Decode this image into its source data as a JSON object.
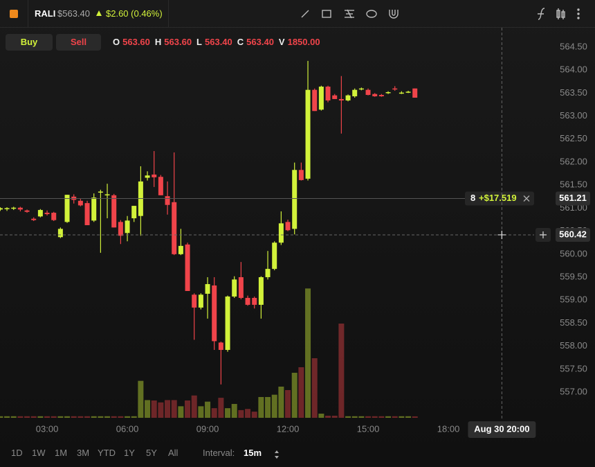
{
  "header": {
    "symbol": "RALI",
    "price": "$563.40",
    "change": "$2.60 (0.46%)"
  },
  "trade_buttons": [
    "Buy",
    "Sell"
  ],
  "ohlcv_legend": [
    {
      "key": "O",
      "value": "563.60"
    },
    {
      "key": "H",
      "value": "563.60"
    },
    {
      "key": "L",
      "value": "563.40"
    },
    {
      "key": "C",
      "value": "563.40"
    },
    {
      "key": "V",
      "value": "1850.00"
    }
  ],
  "ranges": [
    "1D",
    "1W",
    "1M",
    "3M",
    "YTD",
    "1Y",
    "5Y",
    "All"
  ],
  "interval": {
    "label": "Interval:",
    "value": "15m"
  },
  "chart_data": {
    "type": "candlestick",
    "up_color": "#d2f23a",
    "down_color": "#f0444a",
    "grid": false,
    "xlim": [
      1.24,
      21.93
    ],
    "ylim": [
      556.43,
      564.92
    ],
    "volume_lim": [
      0,
      180000
    ],
    "xticks": [
      {
        "value": 3,
        "label": "03:00"
      },
      {
        "value": 6,
        "label": "06:00"
      },
      {
        "value": 9,
        "label": "09:00"
      },
      {
        "value": 12,
        "label": "12:00"
      },
      {
        "value": 15,
        "label": "15:00"
      },
      {
        "value": 18,
        "label": "18:00"
      }
    ],
    "yticks": [
      {
        "value": 557,
        "label": "557.00"
      },
      {
        "value": 557.5,
        "label": "557.50"
      },
      {
        "value": 558,
        "label": "558.00"
      },
      {
        "value": 558.5,
        "label": "558.50"
      },
      {
        "value": 559,
        "label": "559.00"
      },
      {
        "value": 559.5,
        "label": "559.50"
      },
      {
        "value": 560,
        "label": "560.00"
      },
      {
        "value": 560.5,
        "label": "560.50"
      },
      {
        "value": 561,
        "label": "561.00"
      },
      {
        "value": 561.5,
        "label": "561.50"
      },
      {
        "value": 562,
        "label": "562.00"
      },
      {
        "value": 562.5,
        "label": "562.50"
      },
      {
        "value": 563,
        "label": "563.00"
      },
      {
        "value": 563.5,
        "label": "563.50"
      },
      {
        "value": 564,
        "label": "564.00"
      },
      {
        "value": 564.5,
        "label": "564.50"
      }
    ],
    "x": [
      1.25,
      1.5,
      1.75,
      2,
      2.25,
      2.5,
      2.75,
      3,
      3.25,
      3.5,
      3.75,
      4,
      4.25,
      4.5,
      4.75,
      5,
      5.25,
      5.5,
      5.75,
      6,
      6.25,
      6.5,
      6.75,
      7,
      7.25,
      7.5,
      7.75,
      8,
      8.25,
      8.5,
      8.75,
      9,
      9.25,
      9.5,
      9.75,
      10,
      10.25,
      10.5,
      10.75,
      11,
      11.25,
      11.5,
      11.75,
      12,
      12.25,
      12.5,
      12.75,
      13,
      13.25,
      13.5,
      13.75,
      14,
      14.25,
      14.5,
      14.75,
      15,
      15.25,
      15.5,
      15.75,
      16,
      16.25,
      16.5,
      16.75
    ],
    "ohlc": [
      [
        560.97,
        561.02,
        560.94,
        561.0
      ],
      [
        560.98,
        561.02,
        560.94,
        561.0
      ],
      [
        560.99,
        561.03,
        560.96,
        561.01
      ],
      [
        561.01,
        561.03,
        560.93,
        560.97
      ],
      [
        560.95,
        560.97,
        560.9,
        560.92
      ],
      [
        560.77,
        560.8,
        560.72,
        560.74
      ],
      [
        560.82,
        560.98,
        560.8,
        560.96
      ],
      [
        560.9,
        560.95,
        560.84,
        560.87
      ],
      [
        560.9,
        560.92,
        560.72,
        560.74
      ],
      [
        560.37,
        560.58,
        560.35,
        560.55
      ],
      [
        560.7,
        561.29,
        560.68,
        561.29
      ],
      [
        561.25,
        561.3,
        561.1,
        561.18
      ],
      [
        561.16,
        561.2,
        561.04,
        561.06
      ],
      [
        561.11,
        561.16,
        560.63,
        560.63
      ],
      [
        560.73,
        561.32,
        560.7,
        561.23
      ],
      [
        561.35,
        561.4,
        560.03,
        561.36
      ],
      [
        561.28,
        561.53,
        560.78,
        561.3
      ],
      [
        561.28,
        561.31,
        560.58,
        560.58
      ],
      [
        560.7,
        560.74,
        560.22,
        560.4
      ],
      [
        560.46,
        560.83,
        560.28,
        560.73
      ],
      [
        560.78,
        561.05,
        560.7,
        561.05
      ],
      [
        560.83,
        561.91,
        560.4,
        561.58
      ],
      [
        561.66,
        561.8,
        561.6,
        561.71
      ],
      [
        561.73,
        562.24,
        561.46,
        561.67
      ],
      [
        561.68,
        561.72,
        561.28,
        561.28
      ],
      [
        561.26,
        561.58,
        560.86,
        561.07
      ],
      [
        561.13,
        562.21,
        559.98,
        560.0
      ],
      [
        560.0,
        560.55,
        559.98,
        560.18
      ],
      [
        560.21,
        560.25,
        559.2,
        559.2
      ],
      [
        559.12,
        559.15,
        558.14,
        558.84
      ],
      [
        558.84,
        559.15,
        558.8,
        559.12
      ],
      [
        559.14,
        559.5,
        558.6,
        559.35
      ],
      [
        559.32,
        559.5,
        557.92,
        558.11
      ],
      [
        558.08,
        558.1,
        557.17,
        557.92
      ],
      [
        557.92,
        559.1,
        557.88,
        559.08
      ],
      [
        559.08,
        559.52,
        559.05,
        559.45
      ],
      [
        559.5,
        559.83,
        559.02,
        559.05
      ],
      [
        559.05,
        559.1,
        558.88,
        558.9
      ],
      [
        559.05,
        559.08,
        558.82,
        558.9
      ],
      [
        558.9,
        559.52,
        558.6,
        559.5
      ],
      [
        559.5,
        560.07,
        559.45,
        559.68
      ],
      [
        559.68,
        560.28,
        559.65,
        560.25
      ],
      [
        560.25,
        560.93,
        560.2,
        560.67
      ],
      [
        560.7,
        560.75,
        560.5,
        560.52
      ],
      [
        560.55,
        561.99,
        560.43,
        561.83
      ],
      [
        561.83,
        561.99,
        561.6,
        561.61
      ],
      [
        561.64,
        564.2,
        561.6,
        563.57
      ],
      [
        563.57,
        563.6,
        563.11,
        563.11
      ],
      [
        563.14,
        563.66,
        563.12,
        563.64
      ],
      [
        563.64,
        563.66,
        563.3,
        563.34
      ],
      [
        563.45,
        563.48,
        563.37,
        563.37
      ],
      [
        563.37,
        563.87,
        562.62,
        563.34
      ],
      [
        563.34,
        563.47,
        563.32,
        563.45
      ],
      [
        563.43,
        563.6,
        563.4,
        563.57
      ],
      [
        563.58,
        563.62,
        563.56,
        563.6
      ],
      [
        563.57,
        563.6,
        563.45,
        563.46
      ],
      [
        563.48,
        563.5,
        563.42,
        563.43
      ],
      [
        563.46,
        563.48,
        563.42,
        563.43
      ],
      [
        563.51,
        563.54,
        563.48,
        563.52
      ],
      [
        563.6,
        563.65,
        563.55,
        563.58
      ],
      [
        563.5,
        563.54,
        563.48,
        563.51
      ],
      [
        563.52,
        563.55,
        563.5,
        563.53
      ],
      [
        563.6,
        563.6,
        563.4,
        563.4
      ]
    ],
    "volume": [
      2000,
      2000,
      2000,
      2000,
      2000,
      2000,
      2000,
      2000,
      2000,
      2000,
      2000,
      2000,
      2000,
      2000,
      2000,
      2000,
      2000,
      2000,
      2000,
      2000,
      2000,
      48000,
      23000,
      22500,
      20000,
      23000,
      23000,
      15000,
      22500,
      29000,
      15000,
      21000,
      12500,
      26000,
      12500,
      18000,
      10000,
      11500,
      8000,
      27000,
      27000,
      30000,
      40500,
      36000,
      58500,
      65700,
      168000,
      77400,
      5400,
      2700,
      2700,
      122400,
      2000,
      2000,
      2000,
      2000,
      2000,
      2000,
      2000,
      2000,
      2000,
      2000,
      1850
    ],
    "crosshair": {
      "price": 560.42,
      "time": {
        "value": 20,
        "label": "Aug 30 20:00"
      }
    },
    "marker": {
      "price": 561.21,
      "count": "8",
      "change": "+$17.519"
    }
  }
}
